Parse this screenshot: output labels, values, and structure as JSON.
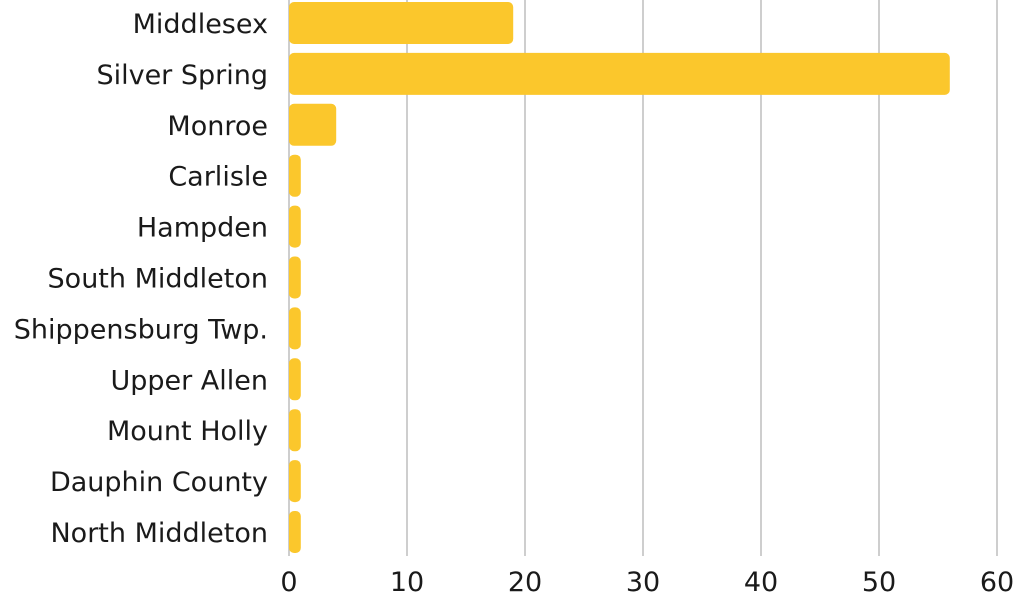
{
  "chart_data": {
    "type": "bar",
    "orientation": "horizontal",
    "categories": [
      "Middlesex",
      "Silver Spring",
      "Monroe",
      "Carlisle",
      "Hampden",
      "South Middleton",
      "Shippensburg Twp.",
      "Upper Allen",
      "Mount Holly",
      "Dauphin County",
      "North Middleton"
    ],
    "values": [
      19,
      56,
      4,
      1,
      1,
      1,
      1,
      1,
      1,
      1,
      1
    ],
    "xlim": [
      0,
      60
    ],
    "xticks": [
      0,
      10,
      20,
      30,
      40,
      50,
      60
    ],
    "title": "",
    "xlabel": "",
    "ylabel": "",
    "grid": "vertical",
    "bar_color": "#FBC72C"
  }
}
